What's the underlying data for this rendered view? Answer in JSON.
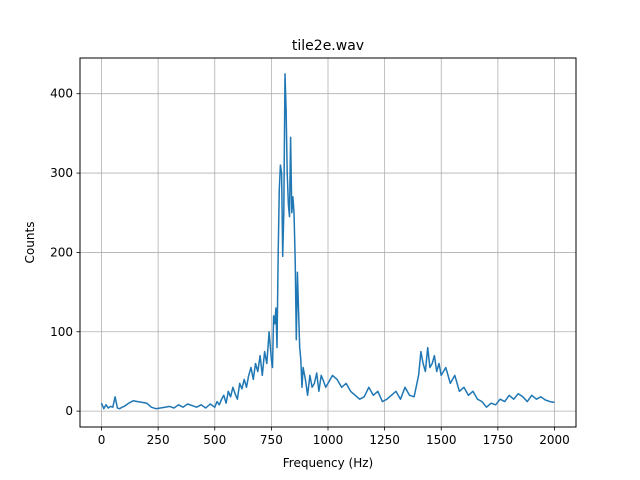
{
  "chart_data": {
    "type": "line",
    "title": "tile2e.wav",
    "xlabel": "Frequency (Hz)",
    "ylabel": "Counts",
    "xlim": [
      -95,
      2095
    ],
    "ylim": [
      -20,
      445
    ],
    "xticks": [
      0,
      250,
      500,
      750,
      1000,
      1250,
      1500,
      1750,
      2000
    ],
    "yticks": [
      0,
      100,
      200,
      300,
      400
    ],
    "grid": true,
    "line_color": "#1f77b4",
    "series": [
      {
        "x": [
          0,
          10,
          20,
          30,
          40,
          50,
          60,
          70,
          80,
          90,
          100,
          120,
          140,
          160,
          180,
          200,
          220,
          240,
          260,
          280,
          300,
          320,
          340,
          360,
          380,
          400,
          420,
          440,
          460,
          480,
          500,
          510,
          520,
          530,
          540,
          550,
          560,
          570,
          580,
          590,
          600,
          610,
          620,
          630,
          640,
          650,
          660,
          670,
          680,
          690,
          700,
          710,
          720,
          730,
          740,
          750,
          755,
          760,
          765,
          770,
          775,
          780,
          785,
          790,
          795,
          800,
          805,
          810,
          815,
          820,
          825,
          830,
          835,
          840,
          845,
          850,
          855,
          860,
          865,
          870,
          875,
          880,
          885,
          890,
          900,
          910,
          920,
          930,
          940,
          950,
          960,
          970,
          980,
          990,
          1000,
          1020,
          1040,
          1060,
          1080,
          1100,
          1120,
          1140,
          1160,
          1180,
          1200,
          1220,
          1240,
          1260,
          1280,
          1300,
          1320,
          1340,
          1360,
          1380,
          1400,
          1410,
          1420,
          1430,
          1440,
          1450,
          1460,
          1470,
          1480,
          1490,
          1500,
          1520,
          1540,
          1560,
          1580,
          1600,
          1620,
          1640,
          1660,
          1680,
          1700,
          1720,
          1740,
          1760,
          1780,
          1800,
          1820,
          1840,
          1860,
          1880,
          1900,
          1920,
          1940,
          1960,
          1980,
          2000
        ],
        "y": [
          10,
          3,
          8,
          4,
          6,
          5,
          18,
          4,
          3,
          5,
          6,
          10,
          13,
          12,
          11,
          10,
          5,
          3,
          4,
          5,
          6,
          4,
          8,
          5,
          9,
          7,
          5,
          8,
          4,
          9,
          5,
          12,
          8,
          15,
          20,
          10,
          25,
          18,
          30,
          22,
          15,
          35,
          28,
          40,
          30,
          45,
          55,
          40,
          60,
          50,
          70,
          45,
          75,
          60,
          100,
          65,
          55,
          120,
          110,
          130,
          80,
          200,
          280,
          310,
          300,
          195,
          250,
          425,
          380,
          300,
          260,
          245,
          345,
          250,
          270,
          250,
          190,
          90,
          175,
          125,
          80,
          65,
          30,
          55,
          40,
          20,
          45,
          30,
          35,
          48,
          25,
          45,
          38,
          30,
          35,
          45,
          40,
          30,
          35,
          25,
          20,
          15,
          18,
          30,
          20,
          25,
          12,
          15,
          20,
          25,
          15,
          30,
          20,
          18,
          45,
          75,
          60,
          50,
          80,
          55,
          60,
          70,
          50,
          60,
          45,
          55,
          35,
          45,
          25,
          30,
          20,
          25,
          15,
          12,
          5,
          10,
          8,
          15,
          12,
          20,
          15,
          22,
          18,
          12,
          20,
          15,
          18,
          14,
          12,
          11
        ]
      }
    ]
  }
}
